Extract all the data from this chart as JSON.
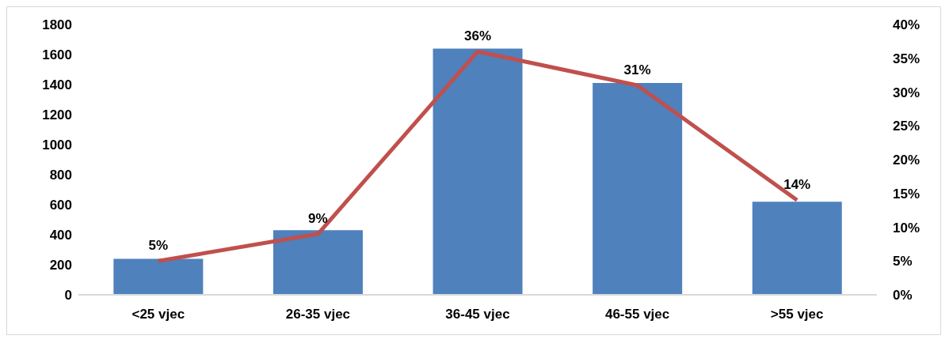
{
  "chart_data": {
    "type": "bar",
    "categories": [
      "<25 vjec",
      "26-35 vjec",
      "36-45 vjec",
      "46-55 vjec",
      ">55 vjec"
    ],
    "series": [
      {
        "color": "#4f81bd",
        "values": [
          240,
          430,
          1640,
          1410,
          620
        ]
      },
      {
        "type": "line",
        "axis": "y2",
        "color": "#c0504d",
        "values": [
          5,
          9,
          36,
          31,
          14
        ],
        "value_labels": [
          "5%",
          "9%",
          "36%",
          "31%",
          "14%"
        ]
      }
    ],
    "ylim": [
      0,
      1800
    ],
    "yticks": [
      0,
      200,
      400,
      600,
      800,
      1000,
      1200,
      1400,
      1600,
      1800
    ],
    "y2lim": [
      0,
      40
    ],
    "y2ticks": [
      {
        "value": 0,
        "label": "0%"
      },
      {
        "value": 5,
        "label": "5%"
      },
      {
        "value": 10,
        "label": "10%"
      },
      {
        "value": 15,
        "label": "15%"
      },
      {
        "value": 20,
        "label": "20%"
      },
      {
        "value": 25,
        "label": "25%"
      },
      {
        "value": 30,
        "label": "30%"
      },
      {
        "value": 35,
        "label": "35%"
      },
      {
        "value": 40,
        "label": "40%"
      }
    ],
    "grid": false,
    "legend": false,
    "marker": "none"
  }
}
